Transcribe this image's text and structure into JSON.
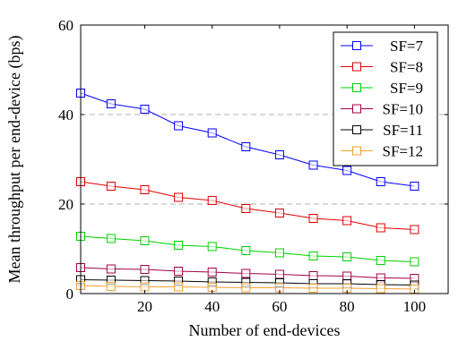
{
  "chart_data": {
    "type": "line",
    "title": "",
    "xlabel": "Number of end-devices",
    "ylabel": "Mean throughput per end-device (bps)",
    "xlim": [
      1,
      110
    ],
    "ylim": [
      0,
      60
    ],
    "xticks": [
      20,
      40,
      60,
      80,
      100
    ],
    "yticks": [
      0,
      20,
      40,
      60
    ],
    "ygrid": [
      20,
      40
    ],
    "grid": "horizontal dashed",
    "legend_position": "top-right",
    "marker": "open-square",
    "x": [
      1,
      10,
      20,
      30,
      40,
      50,
      60,
      70,
      80,
      90,
      100
    ],
    "series": [
      {
        "name": "SF=7",
        "color": "#0000ff",
        "values": [
          44.8,
          42.4,
          41.2,
          37.5,
          35.9,
          32.8,
          31.0,
          28.7,
          27.5,
          25.0,
          24.0
        ]
      },
      {
        "name": "SF=8",
        "color": "#e00000",
        "values": [
          25.0,
          24.0,
          23.2,
          21.5,
          20.8,
          19.0,
          18.0,
          16.8,
          16.3,
          14.7,
          14.3
        ]
      },
      {
        "name": "SF=9",
        "color": "#00d000",
        "values": [
          12.8,
          12.3,
          11.8,
          10.8,
          10.5,
          9.6,
          9.1,
          8.4,
          8.2,
          7.4,
          7.1
        ]
      },
      {
        "name": "SF=10",
        "color": "#a0004a",
        "values": [
          5.8,
          5.5,
          5.4,
          5.0,
          4.8,
          4.5,
          4.3,
          4.0,
          3.9,
          3.5,
          3.4
        ]
      },
      {
        "name": "SF=11",
        "color": "#000000",
        "values": [
          3.1,
          3.0,
          2.9,
          2.8,
          2.6,
          2.5,
          2.4,
          2.2,
          2.2,
          2.0,
          1.9
        ]
      },
      {
        "name": "SF=12",
        "color": "#f0a030",
        "values": [
          1.8,
          1.6,
          1.5,
          1.5,
          1.4,
          1.3,
          1.3,
          1.2,
          1.2,
          1.1,
          1.0
        ]
      }
    ]
  }
}
